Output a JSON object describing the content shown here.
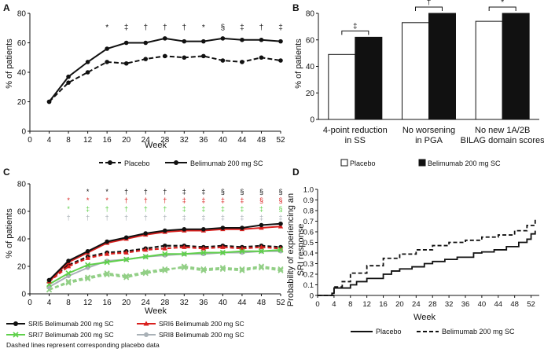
{
  "colors": {
    "black": "#111111",
    "red": "#d9201e",
    "green": "#5fd04b",
    "grey": "#a9b1b7",
    "greenDash": "#92cf86"
  },
  "panels": {
    "A": {
      "label": "A",
      "ylabel": "% of patients",
      "xlabel": "Week",
      "legend": [
        "Placebo",
        "Belimumab 200 mg SC"
      ]
    },
    "B": {
      "label": "B",
      "ylabel": "% of patients",
      "legend": [
        "Placebo",
        "Belimumab 200 mg SC"
      ]
    },
    "C": {
      "label": "C",
      "ylabel": "% of patients",
      "xlabel": "Week",
      "legend": [
        "SRI5 Belimumab 200 mg SC",
        "SRI6 Belimumab 200 mg SC",
        "SRI7 Belimumab 200 mg SC",
        "SRI8 Belimumab 200 mg SC"
      ],
      "note": "Dashed lines represent corresponding placebo data"
    },
    "D": {
      "label": "D",
      "ylabel": [
        "Probability of experiencing an",
        "SRI response"
      ],
      "xlabel": "Week",
      "legend": [
        "Placebo",
        "Belimumab 200 mg SC"
      ]
    }
  },
  "chart_data": [
    {
      "id": "A",
      "type": "line",
      "xlabel": "Week",
      "ylabel": "% of patients",
      "xlim": [
        0,
        52
      ],
      "ylim": [
        0,
        80
      ],
      "x": [
        4,
        8,
        12,
        16,
        20,
        24,
        28,
        32,
        36,
        40,
        44,
        48,
        52
      ],
      "series": [
        {
          "name": "Placebo",
          "style": "dashed",
          "values": [
            20,
            33,
            40,
            47,
            46,
            49,
            51,
            50,
            51,
            48,
            47,
            50,
            48
          ]
        },
        {
          "name": "Belimumab 200 mg SC",
          "style": "solid",
          "values": [
            20,
            37,
            47,
            56,
            60,
            60,
            63,
            61,
            61,
            63,
            62,
            62,
            61
          ]
        }
      ],
      "sig_x": [
        16,
        20,
        24,
        28,
        32,
        36,
        40,
        44,
        48,
        52
      ],
      "sig_markers": [
        "*",
        "‡",
        "†",
        "†",
        "†",
        "*",
        "§",
        "‡",
        "†",
        "‡"
      ]
    },
    {
      "id": "B",
      "type": "bar",
      "ylabel": "% of patients",
      "ylim": [
        0,
        80
      ],
      "categories": [
        [
          "4-point reduction",
          "in SS"
        ],
        [
          "No worsening",
          "in PGA"
        ],
        [
          "No new 1A/2B",
          "BILAG domain scores"
        ]
      ],
      "series": [
        {
          "name": "Placebo",
          "values": [
            49,
            73,
            74
          ]
        },
        {
          "name": "Belimumab 200 mg SC",
          "values": [
            62,
            80,
            80
          ]
        }
      ],
      "sig_markers": [
        "‡",
        "†",
        "*"
      ]
    },
    {
      "id": "C",
      "type": "line",
      "xlabel": "Week",
      "ylabel": "% of patients",
      "xlim": [
        0,
        52
      ],
      "ylim": [
        0,
        80
      ],
      "x": [
        4,
        8,
        12,
        16,
        20,
        24,
        28,
        32,
        36,
        40,
        44,
        48,
        52
      ],
      "series": [
        {
          "name": "SRI5 Belimumab 200 mg SC",
          "color": "black",
          "marker": "circle",
          "values": [
            10,
            24,
            31,
            38,
            41,
            44,
            46,
            47,
            47,
            48,
            48,
            50,
            51
          ]
        },
        {
          "name": "SRI6 Belimumab 200 mg SC",
          "color": "red",
          "marker": "triangle",
          "values": [
            9,
            23,
            30,
            37,
            40,
            43,
            45,
            46,
            46,
            47,
            47,
            48,
            49
          ]
        },
        {
          "name": "SRI7 Belimumab 200 mg SC",
          "color": "green",
          "marker": "x",
          "values": [
            7,
            15,
            21,
            23,
            25,
            27,
            29,
            29,
            30,
            30,
            31,
            31,
            32
          ]
        },
        {
          "name": "SRI8 Belimumab 200 mg SC",
          "color": "grey",
          "marker": "circle",
          "values": [
            5,
            13,
            19,
            24,
            25,
            27,
            28,
            29,
            29,
            30,
            30,
            31,
            31
          ]
        },
        {
          "name": "SRI5 Placebo",
          "color": "black",
          "style": "dashed",
          "values": [
            10,
            21,
            27,
            30,
            31,
            33,
            35,
            35,
            34,
            35,
            34,
            35,
            34
          ]
        },
        {
          "name": "SRI6 Placebo",
          "color": "red",
          "style": "dashed",
          "values": [
            9,
            20,
            26,
            29,
            30,
            32,
            33,
            34,
            33,
            34,
            33,
            34,
            33
          ]
        },
        {
          "name": "SRI7 Placebo",
          "color": "greenDash",
          "style": "dashed",
          "values": [
            3,
            8,
            11,
            14,
            12,
            15,
            17,
            20,
            18,
            19,
            18,
            20,
            18
          ]
        },
        {
          "name": "SRI8 Placebo",
          "color": "greenDash",
          "style": "dashed",
          "values": [
            3,
            9,
            12,
            15,
            13,
            16,
            18,
            19,
            17,
            18,
            17,
            19,
            17
          ]
        }
      ],
      "sig_x": [
        12,
        16,
        20,
        24,
        28,
        32,
        36,
        40,
        44,
        48,
        52
      ],
      "sig_rows": [
        {
          "color": "black",
          "markers": [
            "*",
            "*",
            "†",
            "†",
            "†",
            "‡",
            "‡",
            "§",
            "§",
            "§",
            "§"
          ]
        },
        {
          "color": "red",
          "markers": [
            "*",
            "*",
            "†",
            "†",
            "†",
            "‡",
            "‡",
            "‡",
            "‡",
            "§",
            "§"
          ]
        },
        {
          "color": "green",
          "markers": [
            "‡",
            "†",
            "†",
            "†",
            "†",
            "‡",
            "‡",
            "‡",
            "‡",
            "‡",
            "§"
          ]
        },
        {
          "color": "grey",
          "markers": [
            "†",
            "†",
            "†",
            "†",
            "†",
            "‡",
            "‡",
            "‡",
            "‡",
            "‡",
            "‡"
          ]
        }
      ],
      "sig_row_first_x": [
        8,
        8,
        8,
        8
      ],
      "sig_row_first_markers": [
        "",
        "*",
        "*",
        "†"
      ]
    },
    {
      "id": "D",
      "type": "line",
      "step": true,
      "xlabel": "Week",
      "ylabel": "Probability of experiencing an SRI response",
      "xlim": [
        0,
        54
      ],
      "ylim": [
        0,
        1.0
      ],
      "series": [
        {
          "name": "Placebo",
          "style": "solid",
          "points": [
            [
              0,
              0
            ],
            [
              3.5,
              0
            ],
            [
              3.5,
              0.02
            ],
            [
              4,
              0.02
            ],
            [
              4,
              0.07
            ],
            [
              8,
              0.07
            ],
            [
              8,
              0.1
            ],
            [
              9.5,
              0.1
            ],
            [
              9.5,
              0.13
            ],
            [
              12,
              0.13
            ],
            [
              12,
              0.16
            ],
            [
              16,
              0.16
            ],
            [
              16,
              0.2
            ],
            [
              18,
              0.2
            ],
            [
              18,
              0.23
            ],
            [
              20,
              0.23
            ],
            [
              20,
              0.25
            ],
            [
              23,
              0.25
            ],
            [
              23,
              0.27
            ],
            [
              26,
              0.27
            ],
            [
              26,
              0.3
            ],
            [
              28,
              0.3
            ],
            [
              28,
              0.32
            ],
            [
              31,
              0.32
            ],
            [
              31,
              0.34
            ],
            [
              34,
              0.34
            ],
            [
              34,
              0.36
            ],
            [
              38,
              0.36
            ],
            [
              38,
              0.4
            ],
            [
              40,
              0.4
            ],
            [
              40,
              0.41
            ],
            [
              43,
              0.41
            ],
            [
              43,
              0.43
            ],
            [
              46,
              0.43
            ],
            [
              46,
              0.46
            ],
            [
              49,
              0.46
            ],
            [
              49,
              0.5
            ],
            [
              51,
              0.5
            ],
            [
              51,
              0.53
            ],
            [
              52,
              0.53
            ],
            [
              52,
              0.58
            ],
            [
              53,
              0.58
            ],
            [
              53,
              0.61
            ]
          ]
        },
        {
          "name": "Belimumab 200 mg SC",
          "style": "dashed",
          "points": [
            [
              0,
              0
            ],
            [
              4,
              0
            ],
            [
              4,
              0.08
            ],
            [
              6,
              0.08
            ],
            [
              6,
              0.13
            ],
            [
              8,
              0.13
            ],
            [
              8,
              0.21
            ],
            [
              12,
              0.21
            ],
            [
              12,
              0.28
            ],
            [
              16,
              0.28
            ],
            [
              16,
              0.35
            ],
            [
              20,
              0.35
            ],
            [
              20,
              0.39
            ],
            [
              24,
              0.39
            ],
            [
              24,
              0.43
            ],
            [
              28,
              0.43
            ],
            [
              28,
              0.47
            ],
            [
              32,
              0.47
            ],
            [
              32,
              0.5
            ],
            [
              36,
              0.5
            ],
            [
              36,
              0.52
            ],
            [
              40,
              0.52
            ],
            [
              40,
              0.55
            ],
            [
              44,
              0.55
            ],
            [
              44,
              0.57
            ],
            [
              48,
              0.57
            ],
            [
              48,
              0.61
            ],
            [
              51,
              0.61
            ],
            [
              51,
              0.66
            ],
            [
              53,
              0.66
            ],
            [
              53,
              0.73
            ]
          ]
        }
      ]
    }
  ]
}
